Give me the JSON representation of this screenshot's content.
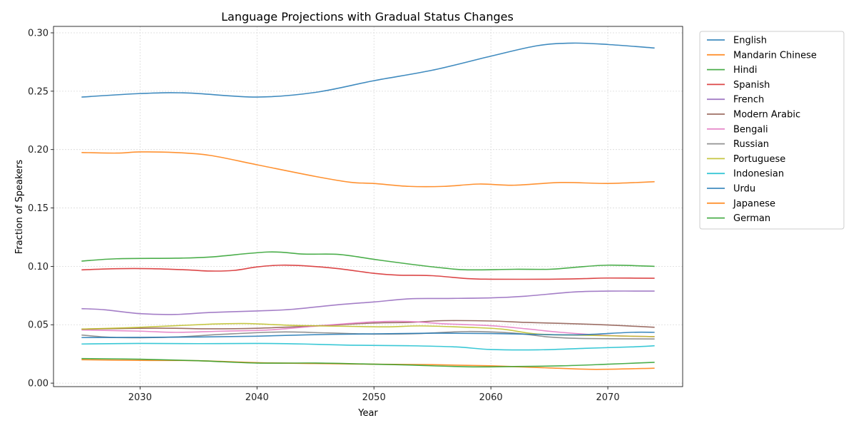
{
  "chart_data": {
    "type": "line",
    "title": "Language Projections with Gradual Status Changes",
    "xlabel": "Year",
    "ylabel": "Fraction of Speakers",
    "xlim": [
      2022.6,
      2076.4
    ],
    "ylim": [
      -0.003,
      0.3055
    ],
    "xticks": [
      2030,
      2040,
      2050,
      2060,
      2070
    ],
    "yticks": [
      0.0,
      0.05,
      0.1,
      0.15,
      0.2,
      0.25,
      0.3
    ],
    "ytick_labels": [
      "0.00",
      "0.05",
      "0.10",
      "0.15",
      "0.20",
      "0.25",
      "0.30"
    ],
    "grid": true,
    "legend_position": "outside-right",
    "series": [
      {
        "name": "English",
        "color": "#1f77b4",
        "points": [
          [
            2025,
            0.245
          ],
          [
            2030,
            0.248
          ],
          [
            2034,
            0.2485
          ],
          [
            2040,
            0.245
          ],
          [
            2045,
            0.249
          ],
          [
            2050,
            0.259
          ],
          [
            2055,
            0.268
          ],
          [
            2060,
            0.28
          ],
          [
            2064,
            0.289
          ],
          [
            2067,
            0.2912
          ],
          [
            2070,
            0.29
          ],
          [
            2074,
            0.287
          ]
        ]
      },
      {
        "name": "Mandarin Chinese",
        "color": "#ff7f0e",
        "points": [
          [
            2025,
            0.1975
          ],
          [
            2028,
            0.197
          ],
          [
            2030,
            0.198
          ],
          [
            2033,
            0.1975
          ],
          [
            2036,
            0.195
          ],
          [
            2040,
            0.187
          ],
          [
            2045,
            0.177
          ],
          [
            2048,
            0.172
          ],
          [
            2050,
            0.171
          ],
          [
            2053,
            0.1685
          ],
          [
            2056,
            0.1685
          ],
          [
            2059,
            0.1705
          ],
          [
            2062,
            0.1695
          ],
          [
            2066,
            0.1718
          ],
          [
            2070,
            0.171
          ],
          [
            2074,
            0.1725
          ]
        ]
      },
      {
        "name": "Hindi",
        "color": "#2ca02c",
        "points": [
          [
            2025,
            0.1045
          ],
          [
            2028,
            0.1065
          ],
          [
            2033,
            0.107
          ],
          [
            2036,
            0.108
          ],
          [
            2041,
            0.1123
          ],
          [
            2044,
            0.1105
          ],
          [
            2047,
            0.1102
          ],
          [
            2050,
            0.106
          ],
          [
            2053,
            0.102
          ],
          [
            2056,
            0.0985
          ],
          [
            2058,
            0.097
          ],
          [
            2062,
            0.0975
          ],
          [
            2065,
            0.0975
          ],
          [
            2067,
            0.099
          ],
          [
            2070,
            0.101
          ],
          [
            2074,
            0.1
          ]
        ]
      },
      {
        "name": "Spanish",
        "color": "#d62728",
        "points": [
          [
            2025,
            0.097
          ],
          [
            2028,
            0.098
          ],
          [
            2031,
            0.098
          ],
          [
            2034,
            0.097
          ],
          [
            2036,
            0.096
          ],
          [
            2038,
            0.0965
          ],
          [
            2040,
            0.0995
          ],
          [
            2042,
            0.101
          ],
          [
            2044,
            0.1005
          ],
          [
            2047,
            0.098
          ],
          [
            2050,
            0.094
          ],
          [
            2052,
            0.0925
          ],
          [
            2055,
            0.092
          ],
          [
            2058,
            0.0895
          ],
          [
            2060,
            0.089
          ],
          [
            2065,
            0.089
          ],
          [
            2068,
            0.0895
          ],
          [
            2070,
            0.09
          ],
          [
            2074,
            0.0898
          ]
        ]
      },
      {
        "name": "French",
        "color": "#9467bd",
        "points": [
          [
            2025,
            0.0638
          ],
          [
            2027,
            0.0628
          ],
          [
            2030,
            0.0595
          ],
          [
            2033,
            0.0588
          ],
          [
            2036,
            0.0605
          ],
          [
            2040,
            0.0618
          ],
          [
            2043,
            0.0632
          ],
          [
            2047,
            0.0672
          ],
          [
            2050,
            0.0695
          ],
          [
            2053,
            0.0722
          ],
          [
            2056,
            0.0725
          ],
          [
            2060,
            0.073
          ],
          [
            2063,
            0.0745
          ],
          [
            2067,
            0.078
          ],
          [
            2070,
            0.0788
          ],
          [
            2074,
            0.0788
          ]
        ]
      },
      {
        "name": "Modern Arabic",
        "color": "#8c564b",
        "points": [
          [
            2025,
            0.0462
          ],
          [
            2030,
            0.047
          ],
          [
            2033,
            0.047
          ],
          [
            2036,
            0.0465
          ],
          [
            2040,
            0.047
          ],
          [
            2045,
            0.049
          ],
          [
            2050,
            0.0515
          ],
          [
            2053,
            0.052
          ],
          [
            2056,
            0.0535
          ],
          [
            2060,
            0.0532
          ],
          [
            2063,
            0.052
          ],
          [
            2066,
            0.0512
          ],
          [
            2070,
            0.0498
          ],
          [
            2074,
            0.0478
          ]
        ]
      },
      {
        "name": "Bengali",
        "color": "#e377c2",
        "points": [
          [
            2025,
            0.0455
          ],
          [
            2030,
            0.0445
          ],
          [
            2033,
            0.0435
          ],
          [
            2037,
            0.0445
          ],
          [
            2041,
            0.0455
          ],
          [
            2045,
            0.0488
          ],
          [
            2050,
            0.0525
          ],
          [
            2053,
            0.0528
          ],
          [
            2056,
            0.0508
          ],
          [
            2060,
            0.0492
          ],
          [
            2063,
            0.0465
          ],
          [
            2066,
            0.0435
          ],
          [
            2070,
            0.0408
          ],
          [
            2074,
            0.0398
          ]
        ]
      },
      {
        "name": "Russian",
        "color": "#7f7f7f",
        "points": [
          [
            2025,
            0.0412
          ],
          [
            2028,
            0.039
          ],
          [
            2033,
            0.0395
          ],
          [
            2037,
            0.0418
          ],
          [
            2042,
            0.0438
          ],
          [
            2046,
            0.043
          ],
          [
            2050,
            0.042
          ],
          [
            2054,
            0.0425
          ],
          [
            2058,
            0.0442
          ],
          [
            2062,
            0.0428
          ],
          [
            2065,
            0.0395
          ],
          [
            2068,
            0.0382
          ],
          [
            2074,
            0.0378
          ]
        ]
      },
      {
        "name": "Portuguese",
        "color": "#bcbd22",
        "points": [
          [
            2025,
            0.0462
          ],
          [
            2030,
            0.0478
          ],
          [
            2036,
            0.0505
          ],
          [
            2039,
            0.051
          ],
          [
            2043,
            0.0495
          ],
          [
            2047,
            0.0488
          ],
          [
            2051,
            0.0482
          ],
          [
            2054,
            0.049
          ],
          [
            2058,
            0.0478
          ],
          [
            2061,
            0.0462
          ],
          [
            2064,
            0.042
          ],
          [
            2068,
            0.041
          ],
          [
            2074,
            0.0398
          ]
        ]
      },
      {
        "name": "Indonesian",
        "color": "#17becf",
        "points": [
          [
            2025,
            0.0335
          ],
          [
            2030,
            0.034
          ],
          [
            2035,
            0.0338
          ],
          [
            2040,
            0.034
          ],
          [
            2044,
            0.0335
          ],
          [
            2048,
            0.0325
          ],
          [
            2053,
            0.032
          ],
          [
            2057,
            0.031
          ],
          [
            2060,
            0.0288
          ],
          [
            2064,
            0.0285
          ],
          [
            2068,
            0.0298
          ],
          [
            2072,
            0.031
          ],
          [
            2074,
            0.032
          ]
        ]
      },
      {
        "name": "Urdu",
        "color": "#1f77b4",
        "points": [
          [
            2025,
            0.039
          ],
          [
            2030,
            0.0392
          ],
          [
            2035,
            0.0395
          ],
          [
            2040,
            0.0402
          ],
          [
            2045,
            0.0415
          ],
          [
            2050,
            0.0422
          ],
          [
            2055,
            0.0428
          ],
          [
            2060,
            0.0425
          ],
          [
            2065,
            0.0415
          ],
          [
            2068,
            0.0415
          ],
          [
            2072,
            0.0435
          ],
          [
            2074,
            0.0435
          ]
        ]
      },
      {
        "name": "Japanese",
        "color": "#ff7f0e",
        "points": [
          [
            2025,
            0.02
          ],
          [
            2030,
            0.0195
          ],
          [
            2035,
            0.0192
          ],
          [
            2040,
            0.0175
          ],
          [
            2045,
            0.0168
          ],
          [
            2050,
            0.0162
          ],
          [
            2055,
            0.0158
          ],
          [
            2060,
            0.0148
          ],
          [
            2065,
            0.013
          ],
          [
            2069,
            0.0118
          ],
          [
            2074,
            0.0128
          ]
        ]
      },
      {
        "name": "German",
        "color": "#2ca02c",
        "points": [
          [
            2025,
            0.021
          ],
          [
            2030,
            0.0205
          ],
          [
            2035,
            0.0192
          ],
          [
            2040,
            0.0172
          ],
          [
            2045,
            0.0172
          ],
          [
            2050,
            0.0162
          ],
          [
            2053,
            0.0155
          ],
          [
            2058,
            0.014
          ],
          [
            2062,
            0.0142
          ],
          [
            2066,
            0.0148
          ],
          [
            2070,
            0.0162
          ],
          [
            2074,
            0.0178
          ]
        ]
      }
    ]
  }
}
